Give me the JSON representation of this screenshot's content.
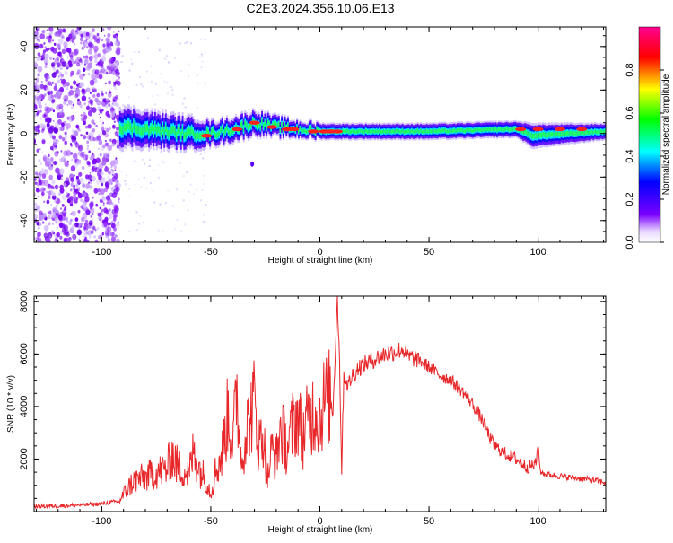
{
  "title": "C2E3.2024.356.10.06.E13",
  "colors": {
    "signal": "#e8272a",
    "axis": "#000000"
  },
  "chart_data": [
    {
      "type": "heatmap",
      "title": "C2E3.2024.356.10.06.E13",
      "xlabel": "Height of straight line (km)",
      "ylabel": "Frequency (Hz)",
      "xlim": [
        -131,
        131
      ],
      "ylim": [
        -50,
        49
      ],
      "xticks": [
        "-100",
        "-50",
        "0",
        "50",
        "100"
      ],
      "yticks": [
        "-40",
        "-20",
        "0",
        "20",
        "40"
      ],
      "noise_region_x": [
        -131,
        -92
      ],
      "signal_band": [
        {
          "x": -92,
          "center": 3,
          "width": 10
        },
        {
          "x": -80,
          "center": 2,
          "width": 9
        },
        {
          "x": -60,
          "center": 0,
          "width": 8
        },
        {
          "x": -50,
          "center": 0,
          "width": 6
        },
        {
          "x": -40,
          "center": 2,
          "width": 6
        },
        {
          "x": -30,
          "center": 5,
          "width": 6
        },
        {
          "x": -20,
          "center": 3,
          "width": 5
        },
        {
          "x": -10,
          "center": 2,
          "width": 4
        },
        {
          "x": 0,
          "center": 1,
          "width": 4
        },
        {
          "x": 10,
          "center": 1,
          "width": 4
        },
        {
          "x": 50,
          "center": 1,
          "width": 4
        },
        {
          "x": 90,
          "center": 2,
          "width": 4
        },
        {
          "x": 97,
          "center": -1,
          "width": 6
        },
        {
          "x": 131,
          "center": 1,
          "width": 4
        }
      ],
      "colorbar": {
        "label": "Normalized spectral amplitude",
        "range": [
          0,
          1
        ],
        "ticks": [
          "0.0",
          "0.2",
          "0.4",
          "0.6",
          "0.8"
        ],
        "stops": [
          "#ffffff",
          "#7a00ff",
          "#0000ff",
          "#00ffff",
          "#00ff00",
          "#ffff00",
          "#ff0000",
          "#ff00a0"
        ]
      }
    },
    {
      "type": "line",
      "xlabel": "Height of straight line (km)",
      "ylabel": "SNR (10 * v/v)",
      "xlim": [
        -131,
        131
      ],
      "ylim": [
        0,
        8200
      ],
      "xticks": [
        "-100",
        "-50",
        "0",
        "50",
        "100"
      ],
      "yticks": [
        "2000",
        "4000",
        "6000",
        "8000"
      ],
      "series": [
        {
          "x": [
            -131,
            -120,
            -110,
            -100,
            -92,
            -88,
            -85,
            -80,
            -75,
            -70,
            -68,
            -65,
            -60,
            -58,
            -55,
            -52,
            -50,
            -48,
            -45,
            -42,
            -40,
            -38,
            -36,
            -34,
            -32,
            -30,
            -28,
            -26,
            -24,
            -22,
            -20,
            -18,
            -15,
            -12,
            -10,
            -8,
            -5,
            -2,
            0,
            2,
            4,
            6,
            7,
            8,
            9,
            10,
            11,
            13,
            15,
            18,
            20,
            25,
            30,
            35,
            38,
            40,
            45,
            50,
            55,
            60,
            65,
            70,
            75,
            78,
            80,
            85,
            90,
            95,
            99,
            100,
            101,
            105,
            110,
            115,
            120,
            125,
            131
          ],
          "values": [
            200,
            220,
            250,
            300,
            400,
            900,
            1200,
            1300,
            1500,
            1600,
            2200,
            1700,
            1400,
            2300,
            1600,
            1200,
            700,
            1500,
            2100,
            3800,
            2600,
            4500,
            1800,
            3000,
            3600,
            4200,
            2500,
            3000,
            1200,
            2400,
            2000,
            3200,
            2400,
            3400,
            3700,
            2800,
            3600,
            3900,
            3600,
            4200,
            4400,
            3800,
            6000,
            8100,
            5800,
            1600,
            5200,
            4800,
            5200,
            5500,
            5600,
            5800,
            6000,
            6100,
            6200,
            5900,
            5800,
            5500,
            5200,
            5000,
            4600,
            4100,
            3400,
            2800,
            2500,
            2200,
            2000,
            1700,
            1800,
            2600,
            1500,
            1400,
            1350,
            1300,
            1250,
            1200,
            1100
          ]
        }
      ]
    }
  ]
}
